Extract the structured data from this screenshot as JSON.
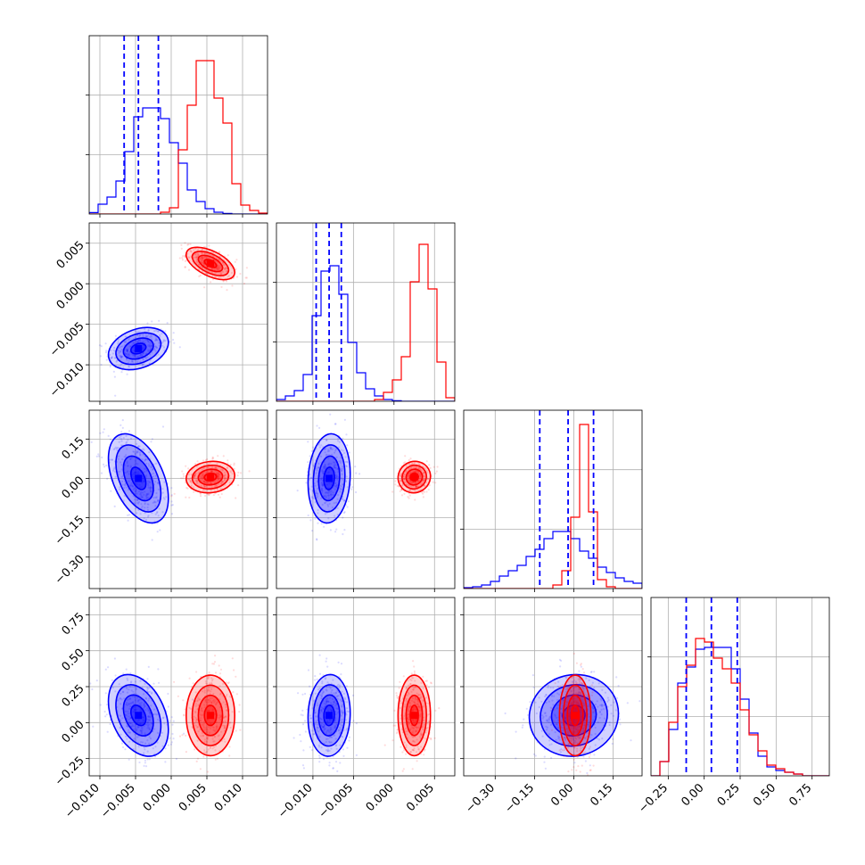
{
  "chart_data": {
    "type": "corner",
    "title": "",
    "parameters": [
      "",
      "",
      "",
      ""
    ],
    "colors": {
      "blue": "#0000ff",
      "red": "#ff0000",
      "grid": "#b0b0b0"
    },
    "grid": true,
    "ranges": [
      [
        -0.0115,
        0.0135
      ],
      [
        -0.0145,
        0.0075
      ],
      [
        -0.42,
        0.26
      ],
      [
        -0.37,
        0.87
      ]
    ],
    "ticks": [
      {
        "values": [
          -0.01,
          -0.005,
          0.0,
          0.005,
          0.01
        ],
        "labels": [
          "−0.010",
          "−0.005",
          "0.000",
          "0.005",
          "0.010"
        ]
      },
      {
        "values": [
          -0.01,
          -0.005,
          0.0,
          0.005
        ],
        "labels": [
          "−0.010",
          "−0.005",
          "0.000",
          "0.005"
        ]
      },
      {
        "values": [
          -0.3,
          -0.15,
          0.0,
          0.15
        ],
        "labels": [
          "−0.30",
          "−0.15",
          "0.00",
          "0.15"
        ]
      },
      {
        "values": [
          -0.25,
          0.0,
          0.25,
          0.5,
          0.75
        ],
        "labels": [
          "−0.25",
          "0.00",
          "0.25",
          "0.50",
          "0.75"
        ]
      }
    ],
    "blue": {
      "mean": [
        -0.0046,
        -0.008,
        0.0,
        0.05
      ],
      "std": [
        0.0021,
        0.0013,
        0.085,
        0.142
      ],
      "corr": [
        [
          0,
          0.3,
          -0.45,
          -0.35
        ],
        [
          0,
          0,
          0.1,
          0.05
        ],
        [
          0,
          0,
          0,
          0.05
        ]
      ],
      "quantiles": [
        [
          -0.0066,
          -0.0046,
          -0.0018
        ],
        [
          -0.0096,
          -0.008,
          -0.0065
        ],
        [
          -0.13,
          -0.022,
          0.075
        ],
        [
          -0.125,
          0.05,
          0.23
        ]
      ]
    },
    "red": {
      "mean": [
        0.0055,
        0.0025,
        0.005,
        0.05
      ],
      "std": [
        0.0017,
        0.001,
        0.03,
        0.14
      ],
      "corr": [
        [
          0,
          -0.55,
          0.1,
          0.0
        ],
        [
          0,
          0,
          0.05,
          0.0
        ],
        [
          0,
          0,
          0,
          0.0
        ]
      ]
    },
    "histograms": {
      "blue": [
        [
          0.008,
          0.055,
          0.095,
          0.185,
          0.35,
          0.545,
          0.595,
          0.595,
          0.535,
          0.4,
          0.285,
          0.135,
          0.07,
          0.03,
          0.01,
          0.003,
          0,
          0,
          0,
          0
        ],
        [
          0.01,
          0.03,
          0.06,
          0.15,
          0.48,
          0.73,
          0.76,
          0.6,
          0.33,
          0.16,
          0.07,
          0.03,
          0.01,
          0.003,
          0,
          0,
          0,
          0,
          0,
          0
        ],
        [
          0.005,
          0.01,
          0.02,
          0.04,
          0.07,
          0.1,
          0.13,
          0.18,
          0.22,
          0.28,
          0.32,
          0.32,
          0.28,
          0.21,
          0.17,
          0.12,
          0.09,
          0.06,
          0.04,
          0.03
        ],
        [
          0,
          0.08,
          0.26,
          0.52,
          0.61,
          0.71,
          0.72,
          0.72,
          0.72,
          0.6,
          0.43,
          0.24,
          0.11,
          0.05,
          0.03,
          0.02,
          0.01,
          0,
          0,
          0
        ]
      ],
      "red": [
        [
          0,
          0,
          0,
          0,
          0,
          0,
          0,
          0,
          0.01,
          0.035,
          0.36,
          0.61,
          0.86,
          0.86,
          0.65,
          0.51,
          0.17,
          0.05,
          0.02,
          0.005
        ],
        [
          0,
          0,
          0,
          0,
          0,
          0,
          0,
          0,
          0,
          0,
          0,
          0.01,
          0.05,
          0.12,
          0.25,
          0.67,
          0.88,
          0.63,
          0.22,
          0.02
        ],
        [
          0,
          0,
          0,
          0,
          0,
          0,
          0,
          0,
          0,
          0,
          0.02,
          0.1,
          0.4,
          0.92,
          0.43,
          0.05,
          0.01,
          0,
          0,
          0
        ],
        [
          0,
          0.08,
          0.3,
          0.5,
          0.62,
          0.77,
          0.75,
          0.66,
          0.6,
          0.52,
          0.37,
          0.23,
          0.14,
          0.06,
          0.04,
          0.02,
          0.01,
          0,
          0,
          0
        ]
      ]
    }
  }
}
